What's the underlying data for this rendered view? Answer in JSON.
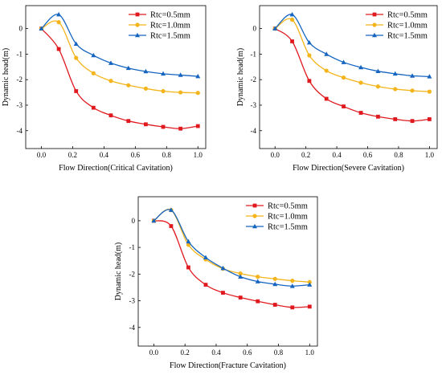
{
  "colors": {
    "series": [
      "#e0191f",
      "#f4b41b",
      "#1565c0"
    ],
    "axis": "#000000",
    "background": "#ffffff"
  },
  "markers": [
    "square",
    "circle",
    "triangle"
  ],
  "chart_data": [
    {
      "type": "line",
      "title": "",
      "xlabel": "Flow Direction(Critical Cavitation)",
      "ylabel": "Dynamic head(m)",
      "xlim": [
        -0.1,
        1.05
      ],
      "ylim": [
        -4.7,
        0.9
      ],
      "xticks": [
        "0.0",
        "0.2",
        "0.4",
        "0.6",
        "0.8",
        "1.0"
      ],
      "yticks": [
        "0",
        "-1",
        "-2",
        "-3",
        "-4"
      ],
      "grid": false,
      "legend_position": "top-right",
      "series": [
        {
          "name": "Rtc=0.5mm",
          "x": [
            0.0,
            0.111,
            0.222,
            0.333,
            0.444,
            0.556,
            0.667,
            0.778,
            0.889,
            1.0
          ],
          "y": [
            0.0,
            -0.8,
            -2.45,
            -3.1,
            -3.4,
            -3.62,
            -3.75,
            -3.85,
            -3.92,
            -3.82
          ]
        },
        {
          "name": "Rtc=1.0mm",
          "x": [
            0.0,
            0.111,
            0.222,
            0.333,
            0.444,
            0.556,
            0.667,
            0.778,
            0.889,
            1.0
          ],
          "y": [
            0.0,
            0.25,
            -1.15,
            -1.75,
            -2.05,
            -2.22,
            -2.35,
            -2.45,
            -2.5,
            -2.52
          ]
        },
        {
          "name": "Rtc=1.5mm",
          "x": [
            0.0,
            0.111,
            0.222,
            0.333,
            0.444,
            0.556,
            0.667,
            0.778,
            0.889,
            1.0
          ],
          "y": [
            0.0,
            0.55,
            -0.6,
            -1.05,
            -1.35,
            -1.55,
            -1.68,
            -1.77,
            -1.82,
            -1.87
          ]
        }
      ]
    },
    {
      "type": "line",
      "title": "",
      "xlabel": "Flow Direction(Severe Cavitation)",
      "ylabel": "Dynamic head(m)",
      "xlim": [
        -0.1,
        1.05
      ],
      "ylim": [
        -4.7,
        0.9
      ],
      "xticks": [
        "0.0",
        "0.2",
        "0.4",
        "0.6",
        "0.8",
        "1.0"
      ],
      "yticks": [
        "0",
        "-1",
        "-2",
        "-3",
        "-4"
      ],
      "grid": false,
      "legend_position": "top-right",
      "series": [
        {
          "name": "Rtc=0.5mm",
          "x": [
            0.0,
            0.111,
            0.222,
            0.333,
            0.444,
            0.556,
            0.667,
            0.778,
            0.889,
            1.0
          ],
          "y": [
            0.0,
            -0.5,
            -2.05,
            -2.75,
            -3.05,
            -3.3,
            -3.45,
            -3.55,
            -3.62,
            -3.55
          ]
        },
        {
          "name": "Rtc=1.0mm",
          "x": [
            0.0,
            0.111,
            0.222,
            0.333,
            0.444,
            0.556,
            0.667,
            0.778,
            0.889,
            1.0
          ],
          "y": [
            0.0,
            0.35,
            -1.05,
            -1.65,
            -1.92,
            -2.12,
            -2.27,
            -2.37,
            -2.43,
            -2.47
          ]
        },
        {
          "name": "Rtc=1.5mm",
          "x": [
            0.0,
            0.111,
            0.222,
            0.333,
            0.444,
            0.556,
            0.667,
            0.778,
            0.889,
            1.0
          ],
          "y": [
            0.0,
            0.55,
            -0.55,
            -1.0,
            -1.32,
            -1.52,
            -1.67,
            -1.77,
            -1.85,
            -1.88
          ]
        }
      ]
    },
    {
      "type": "line",
      "title": "",
      "xlabel": "Flow Direction(Fracture Cavitation)",
      "ylabel": "Dynamic head(m)",
      "xlim": [
        -0.1,
        1.05
      ],
      "ylim": [
        -4.7,
        0.9
      ],
      "xticks": [
        "0.0",
        "0.2",
        "0.4",
        "0.6",
        "0.8",
        "1.0"
      ],
      "yticks": [
        "0",
        "-1",
        "-2",
        "-3",
        "-4"
      ],
      "grid": false,
      "legend_position": "top-right",
      "series": [
        {
          "name": "Rtc=0.5mm",
          "x": [
            0.0,
            0.111,
            0.222,
            0.333,
            0.444,
            0.556,
            0.667,
            0.778,
            0.889,
            1.0
          ],
          "y": [
            0.0,
            -0.2,
            -1.75,
            -2.4,
            -2.7,
            -2.88,
            -3.02,
            -3.15,
            -3.25,
            -3.22
          ]
        },
        {
          "name": "Rtc=1.0mm",
          "x": [
            0.0,
            0.111,
            0.222,
            0.333,
            0.444,
            0.556,
            0.667,
            0.778,
            0.889,
            1.0
          ],
          "y": [
            0.0,
            0.4,
            -0.9,
            -1.45,
            -1.8,
            -1.98,
            -2.1,
            -2.18,
            -2.25,
            -2.3
          ]
        },
        {
          "name": "Rtc=1.5mm",
          "x": [
            0.0,
            0.111,
            0.222,
            0.333,
            0.444,
            0.556,
            0.667,
            0.778,
            0.889,
            1.0
          ],
          "y": [
            0.0,
            0.4,
            -0.78,
            -1.38,
            -1.78,
            -2.1,
            -2.28,
            -2.38,
            -2.45,
            -2.4
          ]
        }
      ]
    }
  ]
}
